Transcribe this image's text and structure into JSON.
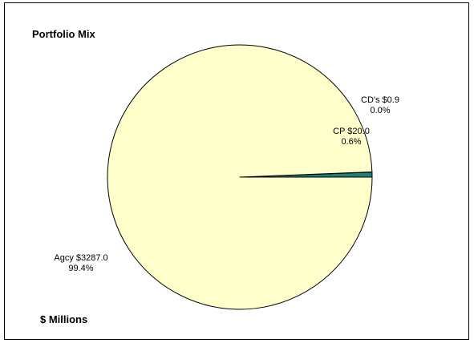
{
  "chart_data": {
    "type": "pie",
    "title": "Portfolio Mix",
    "footnote": "$ Millions",
    "start_angle_deg": 0,
    "direction": "counterclockwise",
    "slices": [
      {
        "category": "CP",
        "value": 20.0,
        "value_label": "CP $20.0",
        "percent_label": "0.6%",
        "color": "#1f7f7a"
      },
      {
        "category": "CD's",
        "value": 0.9,
        "value_label": "CD's $0.9",
        "percent_label": "0.0%",
        "color": "#5fb8b0"
      },
      {
        "category": "Agcy",
        "value": 3287.0,
        "value_label": "Agcy $3287.0",
        "percent_label": "99.4%",
        "color": "#ffffcc"
      }
    ]
  },
  "colors": {
    "background": "#ffffff",
    "border": "#000000",
    "slice_outline": "#000000"
  }
}
